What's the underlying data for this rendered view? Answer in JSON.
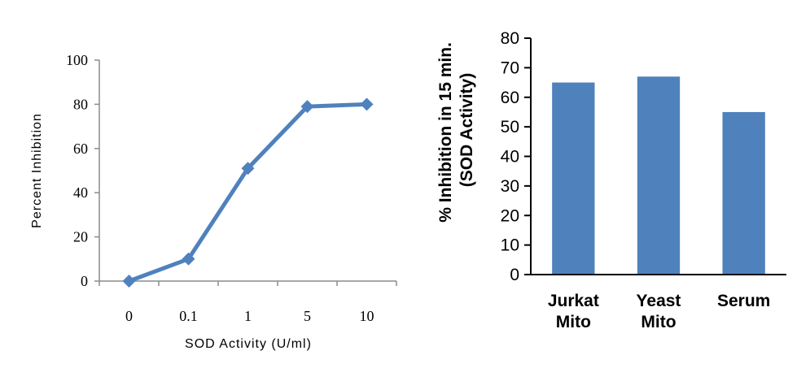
{
  "chart_data": [
    {
      "type": "line",
      "x": [
        "0",
        "0.1",
        "1",
        "5",
        "10"
      ],
      "series": [
        {
          "values": [
            0,
            10,
            51,
            79,
            80
          ]
        }
      ],
      "xlabel": "SOD Activity (U/ml)",
      "ylabel": "Percent Inhibition",
      "ylim": [
        0,
        100
      ],
      "yticks": [
        "0",
        "20",
        "40",
        "60",
        "80",
        "100"
      ],
      "color": "#4f81bd",
      "marker": "diamond",
      "grid": false
    },
    {
      "type": "bar",
      "categories": [
        [
          "Jurkat",
          "Mito"
        ],
        [
          "Yeast",
          "Mito"
        ],
        [
          "Serum"
        ]
      ],
      "values": [
        65,
        67,
        55
      ],
      "ylabel": [
        "% Inhibition  in 15 min.",
        "(SOD Activity)"
      ],
      "ylim": [
        0,
        80
      ],
      "yticks": [
        "0",
        "10",
        "20",
        "30",
        "40",
        "50",
        "60",
        "70",
        "80"
      ],
      "color": "#4f81bd",
      "grid": false
    }
  ]
}
